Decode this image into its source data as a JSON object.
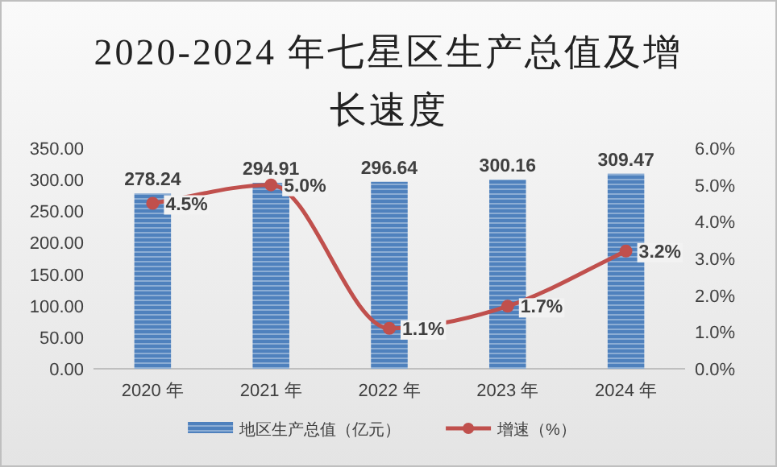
{
  "chart_data": {
    "type": "bar",
    "title": "2020-2024 年七星区生产总值及增长速度",
    "categories": [
      "2020 年",
      "2021 年",
      "2022 年",
      "2023 年",
      "2024 年"
    ],
    "series": [
      {
        "name": "地区生产总值（亿元）",
        "color": "#4f81bd",
        "values": [
          278.24,
          294.91,
          296.64,
          300.16,
          309.47
        ],
        "value_labels": [
          "278.24",
          "294.91",
          "296.64",
          "300.16",
          "309.47"
        ]
      },
      {
        "name": "增速（%）",
        "type": "line",
        "axis": "y2",
        "color": "#c0504d",
        "marker": "circle",
        "values": [
          4.5,
          5.0,
          1.1,
          1.7,
          3.2
        ],
        "value_labels": [
          "4.5%",
          "5.0%",
          "1.1%",
          "1.7%",
          "3.2%"
        ]
      }
    ],
    "ylim": [
      0,
      350
    ],
    "yticks": [
      {
        "value": 0,
        "label": "0.00"
      },
      {
        "value": 50,
        "label": "50.00"
      },
      {
        "value": 100,
        "label": "100.00"
      },
      {
        "value": 150,
        "label": "150.00"
      },
      {
        "value": 200,
        "label": "200.00"
      },
      {
        "value": 250,
        "label": "250.00"
      },
      {
        "value": 300,
        "label": "300.00"
      },
      {
        "value": 350,
        "label": "350.00"
      }
    ],
    "y2lim": [
      0,
      6
    ],
    "y2ticks": [
      {
        "value": 0,
        "label": "0.0%"
      },
      {
        "value": 1,
        "label": "1.0%"
      },
      {
        "value": 2,
        "label": "2.0%"
      },
      {
        "value": 3,
        "label": "3.0%"
      },
      {
        "value": 4,
        "label": "4.0%"
      },
      {
        "value": 5,
        "label": "5.0%"
      },
      {
        "value": 6,
        "label": "6.0%"
      }
    ],
    "grid": false,
    "legend": "bottom"
  }
}
